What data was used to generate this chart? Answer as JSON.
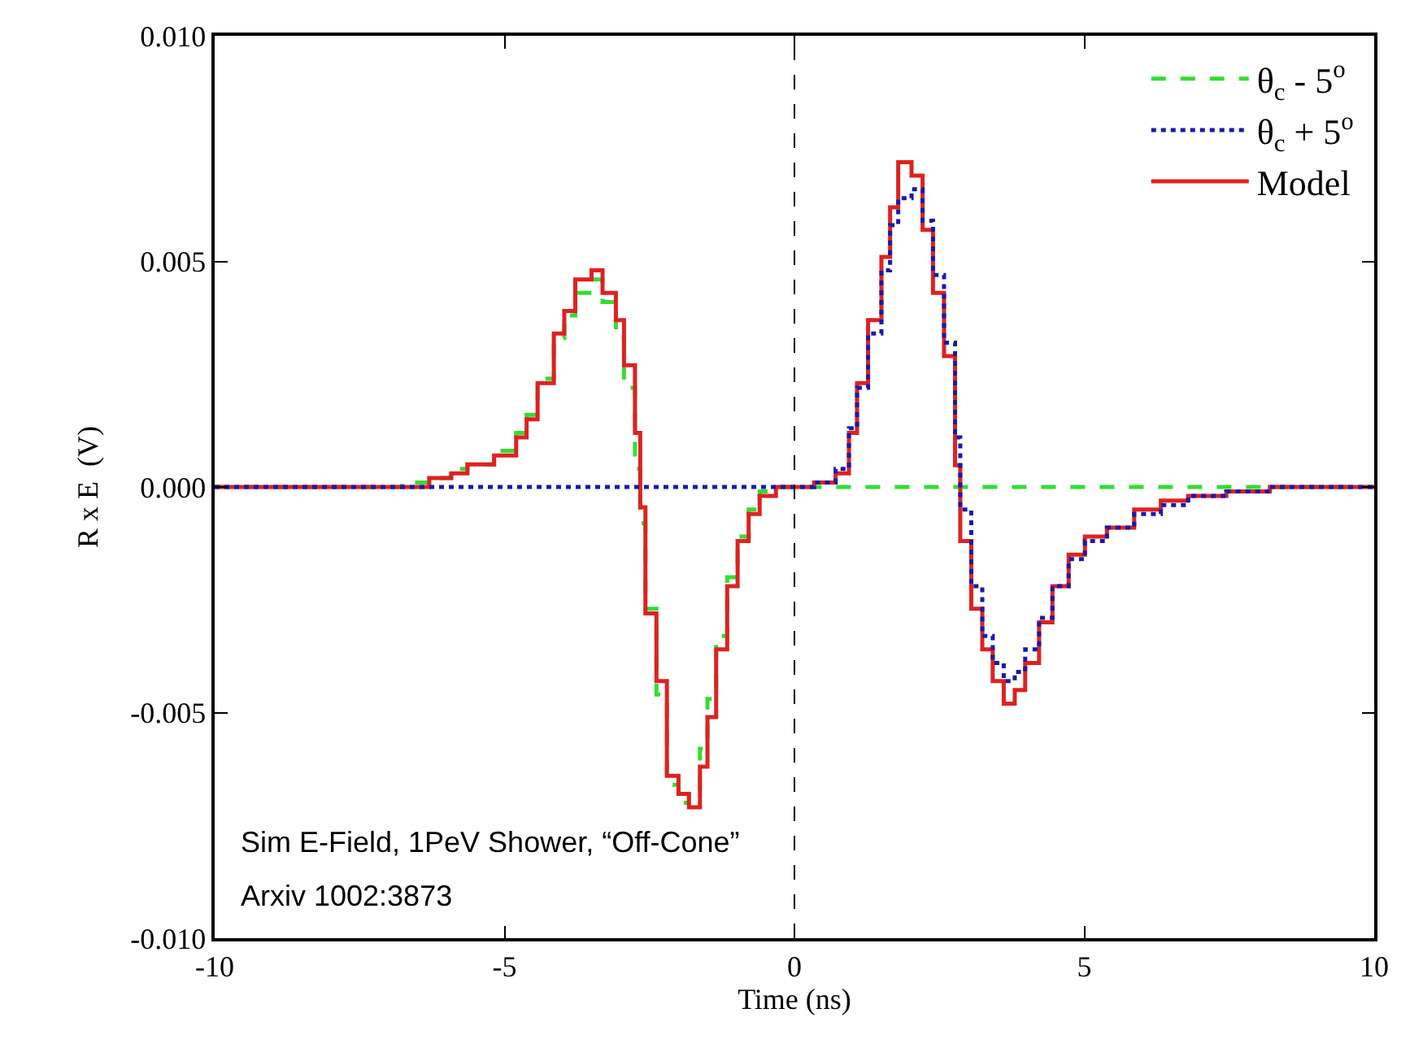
{
  "chart_data": {
    "type": "step",
    "xlabel": "Time (ns)",
    "ylabel": "R x E  (V)",
    "xlim": [
      -10,
      10
    ],
    "xticks": [
      -10,
      -5,
      0,
      5,
      10
    ],
    "ylim": [
      -0.01,
      0.01
    ],
    "yticks": [
      {
        "value": -0.01,
        "label": "-0.010"
      },
      {
        "value": -0.005,
        "label": "-0.005"
      },
      {
        "value": 0,
        "label": "0.000"
      },
      {
        "value": 0.005,
        "label": "0.005"
      },
      {
        "value": 0.01,
        "label": "0.010"
      }
    ],
    "legend": "top right",
    "ref_lines": [
      {
        "axis": "x",
        "value": 0,
        "color": "#000000",
        "line_style": "dashed"
      }
    ],
    "annotations": [
      "Sim E-Field, 1PeV Shower, “Off-Cone”",
      "Arxiv 1002:3873"
    ],
    "series": [
      {
        "name": "θ$_{c}$ - 5$^{o}$",
        "color": "#33dd33",
        "line_style": "dashed",
        "x": [
          -10,
          -6.77,
          -6.3,
          -5.92,
          -5.64,
          -5.18,
          -4.8,
          -4.62,
          -4.43,
          -4.15,
          -3.97,
          -3.78,
          -3.5,
          -3.31,
          -3.08,
          -2.94,
          -2.75,
          -2.66,
          -2.57,
          -2.38,
          -2.2,
          -2.0,
          -1.82,
          -1.63,
          -1.5,
          -1.35,
          -1.16,
          -0.98,
          -0.79,
          -0.6,
          -0.32,
          10
        ],
        "values": [
          0,
          0.0001,
          0.0002,
          0.0004,
          0.0005,
          0.0008,
          0.0012,
          0.0016,
          0.0024,
          0.0033,
          0.0038,
          0.0043,
          0.0046,
          0.0041,
          0.0033,
          0.0022,
          0.0004,
          -0.0008,
          -0.0027,
          -0.0046,
          -0.0066,
          -0.007,
          -0.0067,
          -0.0058,
          -0.0047,
          -0.0033,
          -0.002,
          -0.0011,
          -0.0005,
          -0.0001,
          0,
          0
        ]
      },
      {
        "name": "θ$_{c}$ + 5$^{o}$",
        "color": "#1a1aaa",
        "line_style": "dotted",
        "x": [
          -10,
          0.34,
          0.71,
          0.94,
          1.08,
          1.27,
          1.5,
          1.65,
          1.79,
          2.02,
          2.21,
          2.39,
          2.58,
          2.77,
          2.86,
          3.05,
          3.24,
          3.42,
          3.61,
          3.8,
          3.98,
          4.22,
          4.45,
          4.73,
          5.01,
          5.39,
          5.86,
          6.32,
          6.79,
          7.45,
          8.2,
          10
        ],
        "values": [
          0,
          0.0001,
          0.0004,
          0.0013,
          0.0022,
          0.0034,
          0.0048,
          0.0058,
          0.0064,
          0.0066,
          0.0059,
          0.0047,
          0.0032,
          0.0011,
          -0.0005,
          -0.0022,
          -0.0033,
          -0.0039,
          -0.0043,
          -0.0041,
          -0.0036,
          -0.0029,
          -0.0022,
          -0.0016,
          -0.0012,
          -0.0009,
          -0.0006,
          -0.0004,
          -0.0002,
          -0.0001,
          0,
          0
        ]
      },
      {
        "name": "Model",
        "color": "#dd2222",
        "line_style": "solid",
        "x": [
          -10,
          -6.77,
          -6.3,
          -5.92,
          -5.64,
          -5.18,
          -4.8,
          -4.62,
          -4.43,
          -4.15,
          -3.97,
          -3.78,
          -3.5,
          -3.31,
          -3.08,
          -2.94,
          -2.75,
          -2.66,
          -2.57,
          -2.38,
          -2.2,
          -2.0,
          -1.82,
          -1.63,
          -1.5,
          -1.35,
          -1.16,
          -0.98,
          -0.79,
          -0.6,
          -0.32,
          0.34,
          0.71,
          0.94,
          1.08,
          1.27,
          1.5,
          1.65,
          1.79,
          2.02,
          2.21,
          2.39,
          2.58,
          2.77,
          2.86,
          3.05,
          3.24,
          3.42,
          3.61,
          3.8,
          3.98,
          4.22,
          4.45,
          4.73,
          5.01,
          5.39,
          5.86,
          6.32,
          6.79,
          7.45,
          8.2,
          10
        ],
        "values": [
          0,
          0.0,
          0.0002,
          0.0003,
          0.0005,
          0.0007,
          0.0011,
          0.0015,
          0.0023,
          0.0034,
          0.0039,
          0.0046,
          0.0048,
          0.0043,
          0.0037,
          0.0027,
          0.0012,
          -0.00045,
          -0.0028,
          -0.0043,
          -0.0064,
          -0.0068,
          -0.0071,
          -0.0062,
          -0.0051,
          -0.0036,
          -0.0022,
          -0.0012,
          -0.0006,
          -0.0002,
          0,
          0.0001,
          0.0003,
          0.0012,
          0.0023,
          0.0037,
          0.0051,
          0.0062,
          0.0072,
          0.0069,
          0.0057,
          0.0043,
          0.0029,
          0.00048,
          -0.0012,
          -0.0027,
          -0.0036,
          -0.0043,
          -0.0048,
          -0.0045,
          -0.0039,
          -0.003,
          -0.0022,
          -0.0015,
          -0.0011,
          -0.0009,
          -0.0005,
          -0.0003,
          -0.0002,
          -0.0001,
          0,
          0
        ]
      }
    ]
  }
}
